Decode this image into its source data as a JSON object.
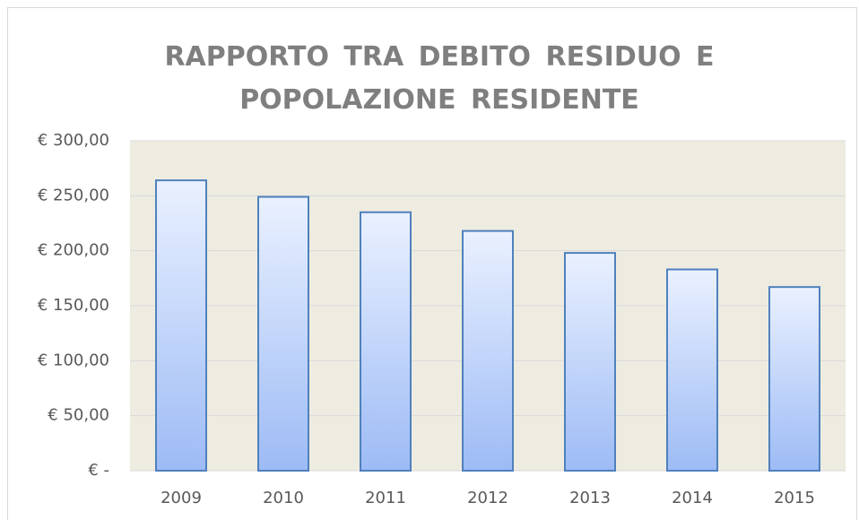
{
  "chart_data": {
    "type": "bar",
    "title": "RAPPORTO TRA DEBITO RESIDUO E POPOLAZIONE RESIDENTE",
    "categories": [
      "2009",
      "2010",
      "2011",
      "2012",
      "2013",
      "2014",
      "2015"
    ],
    "values": [
      264,
      249,
      235,
      218,
      198,
      183,
      167
    ],
    "color": "#4f81bd",
    "ylim": [
      0,
      300
    ],
    "yticks": [
      {
        "value": 0,
        "label": "€ -"
      },
      {
        "value": 50,
        "label": "€ 50,00"
      },
      {
        "value": 100,
        "label": "€ 100,00"
      },
      {
        "value": 150,
        "label": "€ 150,00"
      },
      {
        "value": 200,
        "label": "€ 200,00"
      },
      {
        "value": 250,
        "label": "€ 250,00"
      },
      {
        "value": 300,
        "label": "€ 300,00"
      }
    ],
    "grid": true
  }
}
